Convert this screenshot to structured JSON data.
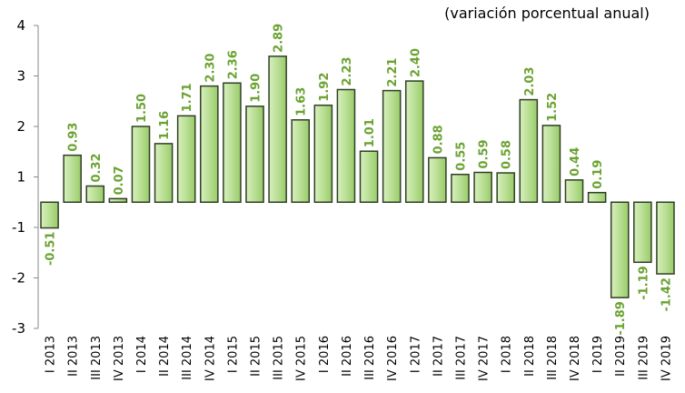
{
  "chart_data": {
    "type": "bar",
    "title": "(variación porcentual anual)",
    "categories": [
      "I 2013",
      "II 2013",
      "III 2013",
      "IV 2013",
      "I 2014",
      "II 2014",
      "III 2014",
      "IV 2014",
      "I 2015",
      "II 2015",
      "III 2015",
      "IV 2015",
      "I 2016",
      "II 2016",
      "III 2016",
      "IV 2016",
      "I 2017",
      "II 2017",
      "III 2017",
      "IV 2017",
      "I 2018",
      "II 2018",
      "III 2018",
      "IV 2018",
      "I 2019",
      "II 2019",
      "III 2019",
      "IV 2019"
    ],
    "values": [
      -0.51,
      0.93,
      0.32,
      0.07,
      1.5,
      1.16,
      1.71,
      2.3,
      2.36,
      1.9,
      2.89,
      1.63,
      1.92,
      2.23,
      1.01,
      2.21,
      2.4,
      0.88,
      0.55,
      0.59,
      0.58,
      2.03,
      1.52,
      0.44,
      0.19,
      -1.89,
      -1.19,
      -1.42
    ],
    "value_labels": [
      "-0.51",
      "0.93",
      "0.32",
      "0.07",
      "1.50",
      "1.16",
      "1.71",
      "2.30",
      "2.36",
      "1.90",
      "2.89",
      "1.63",
      "1.92",
      "2.23",
      "1.01",
      "2.21",
      "2.40",
      "0.88",
      "0.55",
      "0.59",
      "0.58",
      "2.03",
      "1.52",
      "0.44",
      "0.19",
      "-1.89",
      "-1.19",
      "-1.42"
    ],
    "color": "#b5dc8e",
    "ylim": [
      -2.5,
      3.5
    ],
    "yticks": [
      {
        "value": 3.5,
        "label": "4"
      },
      {
        "value": 2.5,
        "label": "3"
      },
      {
        "value": 1.5,
        "label": "2"
      },
      {
        "value": 0.5,
        "label": "1"
      },
      {
        "value": -0.5,
        "label": "-1"
      },
      {
        "value": -1.5,
        "label": "-2"
      },
      {
        "value": -2.5,
        "label": "-3"
      }
    ],
    "grid": false
  }
}
